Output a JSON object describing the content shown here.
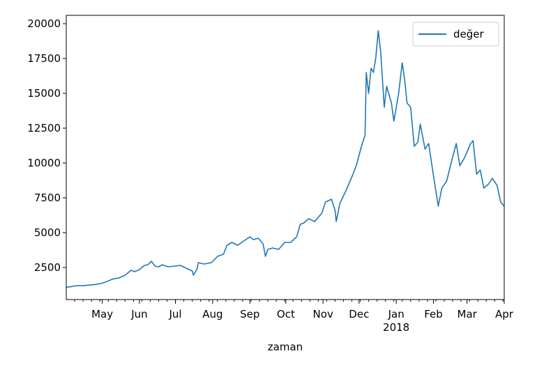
{
  "chart_data": {
    "type": "line",
    "xlabel": "zaman",
    "ylabel": "",
    "grid": false,
    "legend_position": "top-right",
    "xlim": [
      "2017-04-01",
      "2018-04-01"
    ],
    "ylim": [
      200,
      20600
    ],
    "y_ticks": [
      2500,
      5000,
      7500,
      10000,
      12500,
      15000,
      17500,
      20000
    ],
    "x_ticks": [
      {
        "date": "2017-05-01",
        "label": "May"
      },
      {
        "date": "2017-06-01",
        "label": "Jun"
      },
      {
        "date": "2017-07-01",
        "label": "Jul"
      },
      {
        "date": "2017-08-01",
        "label": "Aug"
      },
      {
        "date": "2017-09-01",
        "label": "Sep"
      },
      {
        "date": "2017-10-01",
        "label": "Oct"
      },
      {
        "date": "2017-11-01",
        "label": "Nov"
      },
      {
        "date": "2017-12-01",
        "label": "Dec"
      },
      {
        "date": "2018-01-01",
        "label": "Jan",
        "sublabel": "2018"
      },
      {
        "date": "2018-02-01",
        "label": "Feb"
      },
      {
        "date": "2018-03-01",
        "label": "Mar"
      },
      {
        "date": "2018-04-01",
        "label": "Apr"
      }
    ],
    "series": [
      {
        "name": "değer",
        "color": "#1f77b4",
        "points": [
          [
            "2017-04-01",
            1080
          ],
          [
            "2017-04-05",
            1130
          ],
          [
            "2017-04-10",
            1200
          ],
          [
            "2017-04-15",
            1190
          ],
          [
            "2017-04-20",
            1240
          ],
          [
            "2017-04-25",
            1280
          ],
          [
            "2017-04-30",
            1350
          ],
          [
            "2017-05-05",
            1500
          ],
          [
            "2017-05-10",
            1680
          ],
          [
            "2017-05-15",
            1750
          ],
          [
            "2017-05-20",
            1950
          ],
          [
            "2017-05-25",
            2300
          ],
          [
            "2017-05-28",
            2200
          ],
          [
            "2017-06-01",
            2350
          ],
          [
            "2017-06-05",
            2650
          ],
          [
            "2017-06-08",
            2700
          ],
          [
            "2017-06-11",
            2950
          ],
          [
            "2017-06-14",
            2600
          ],
          [
            "2017-06-17",
            2550
          ],
          [
            "2017-06-20",
            2700
          ],
          [
            "2017-06-25",
            2550
          ],
          [
            "2017-06-30",
            2600
          ],
          [
            "2017-07-05",
            2650
          ],
          [
            "2017-07-10",
            2450
          ],
          [
            "2017-07-15",
            2250
          ],
          [
            "2017-07-16",
            1950
          ],
          [
            "2017-07-19",
            2400
          ],
          [
            "2017-07-20",
            2850
          ],
          [
            "2017-07-25",
            2750
          ],
          [
            "2017-07-31",
            2850
          ],
          [
            "2017-08-05",
            3300
          ],
          [
            "2017-08-10",
            3450
          ],
          [
            "2017-08-13",
            4100
          ],
          [
            "2017-08-17",
            4300
          ],
          [
            "2017-08-22",
            4100
          ],
          [
            "2017-08-26",
            4350
          ],
          [
            "2017-09-01",
            4700
          ],
          [
            "2017-09-04",
            4500
          ],
          [
            "2017-09-08",
            4600
          ],
          [
            "2017-09-12",
            4200
          ],
          [
            "2017-09-14",
            3300
          ],
          [
            "2017-09-16",
            3800
          ],
          [
            "2017-09-20",
            3900
          ],
          [
            "2017-09-25",
            3800
          ],
          [
            "2017-09-30",
            4300
          ],
          [
            "2017-10-05",
            4300
          ],
          [
            "2017-10-10",
            4700
          ],
          [
            "2017-10-13",
            5600
          ],
          [
            "2017-10-16",
            5700
          ],
          [
            "2017-10-20",
            6000
          ],
          [
            "2017-10-25",
            5800
          ],
          [
            "2017-10-31",
            6400
          ],
          [
            "2017-11-03",
            7200
          ],
          [
            "2017-11-08",
            7400
          ],
          [
            "2017-11-11",
            6600
          ],
          [
            "2017-11-12",
            5800
          ],
          [
            "2017-11-15",
            7100
          ],
          [
            "2017-11-20",
            8000
          ],
          [
            "2017-11-26",
            9200
          ],
          [
            "2017-11-29",
            9900
          ],
          [
            "2017-12-03",
            11200
          ],
          [
            "2017-12-06",
            12000
          ],
          [
            "2017-12-07",
            16500
          ],
          [
            "2017-12-09",
            15000
          ],
          [
            "2017-12-11",
            16800
          ],
          [
            "2017-12-13",
            16500
          ],
          [
            "2017-12-15",
            17600
          ],
          [
            "2017-12-17",
            19500
          ],
          [
            "2017-12-19",
            18000
          ],
          [
            "2017-12-22",
            14000
          ],
          [
            "2017-12-24",
            15500
          ],
          [
            "2017-12-28",
            14300
          ],
          [
            "2017-12-30",
            13000
          ],
          [
            "2018-01-03",
            15000
          ],
          [
            "2018-01-06",
            17200
          ],
          [
            "2018-01-08",
            16000
          ],
          [
            "2018-01-10",
            14300
          ],
          [
            "2018-01-13",
            14000
          ],
          [
            "2018-01-16",
            11200
          ],
          [
            "2018-01-19",
            11500
          ],
          [
            "2018-01-21",
            12800
          ],
          [
            "2018-01-25",
            11000
          ],
          [
            "2018-01-28",
            11400
          ],
          [
            "2018-02-01",
            9100
          ],
          [
            "2018-02-05",
            6900
          ],
          [
            "2018-02-08",
            8200
          ],
          [
            "2018-02-12",
            8700
          ],
          [
            "2018-02-16",
            10100
          ],
          [
            "2018-02-20",
            11400
          ],
          [
            "2018-02-23",
            9800
          ],
          [
            "2018-02-27",
            10400
          ],
          [
            "2018-03-04",
            11400
          ],
          [
            "2018-03-06",
            11600
          ],
          [
            "2018-03-09",
            9200
          ],
          [
            "2018-03-12",
            9500
          ],
          [
            "2018-03-15",
            8200
          ],
          [
            "2018-03-19",
            8500
          ],
          [
            "2018-03-22",
            8900
          ],
          [
            "2018-03-26",
            8400
          ],
          [
            "2018-03-29",
            7200
          ],
          [
            "2018-04-01",
            6900
          ]
        ]
      }
    ]
  }
}
